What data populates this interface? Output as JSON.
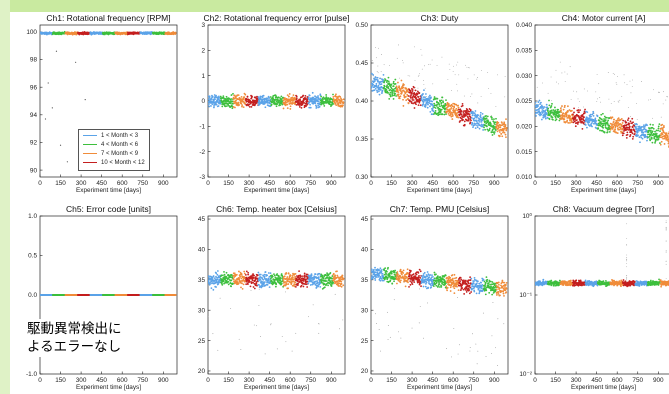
{
  "legend": [
    {
      "label": "1 < Month < 3",
      "color": "#5ba3e8"
    },
    {
      "label": "4 < Month < 6",
      "color": "#3dbf3d"
    },
    {
      "label": "7 < Month < 9",
      "color": "#f08c3a"
    },
    {
      "label": "10 < Month < 12",
      "color": "#c41f1f"
    }
  ],
  "annotation": {
    "line1": "駆動異常検出に",
    "line2": "よるエラーなし"
  },
  "chart_data": [
    {
      "type": "scatter",
      "title": "Ch1: Rotational frequency [RPM]",
      "xlabel": "Experiment time [days]",
      "xlim": [
        0,
        1000
      ],
      "xticks": [
        "0",
        "150",
        "300",
        "450",
        "600",
        "750",
        "900"
      ],
      "ylim": [
        89.5,
        100.5
      ],
      "yticks": [
        "90",
        "92",
        "94",
        "96",
        "98",
        "100"
      ],
      "yscale": "linear",
      "series": [
        {
          "level": 99.9,
          "spread": 0.12
        }
      ],
      "outliers": [
        [
          60,
          96.3
        ],
        [
          90,
          94.5
        ],
        [
          150,
          91.8
        ],
        [
          200,
          90.6
        ],
        [
          40,
          93.7
        ],
        [
          260,
          97.8
        ],
        [
          120,
          98.6
        ],
        [
          330,
          95.1
        ]
      ]
    },
    {
      "type": "scatter",
      "title": "Ch2: Rotational frequency error [pulse]",
      "xlabel": "Experiment time [days]",
      "xlim": [
        0,
        1000
      ],
      "xticks": [
        "0",
        "150",
        "300",
        "450",
        "600",
        "750",
        "900"
      ],
      "ylim": [
        -3,
        3
      ],
      "yticks": [
        "-3",
        "-2",
        "-1",
        "0",
        "1",
        "2",
        "3"
      ],
      "yscale": "linear",
      "series": [
        {
          "level": 0.0,
          "spread": 0.35
        }
      ]
    },
    {
      "type": "scatter",
      "title": "Ch3: Duty",
      "xlabel": "Experiment time [days]",
      "xlim": [
        0,
        1000
      ],
      "xticks": [
        "0",
        "150",
        "300",
        "450",
        "600",
        "750",
        "900"
      ],
      "ylim": [
        0.3,
        0.5
      ],
      "yticks": [
        "0.30",
        "0.35",
        "0.40",
        "0.45",
        "0.50"
      ],
      "yscale": "linear",
      "series": [
        {
          "start": 0.425,
          "end": 0.362,
          "spread": 0.018
        },
        {
          "x": [
            100,
            400
          ],
          "y": [
            0.42,
            0.37
          ]
        },
        {
          "x": [
            400,
            950
          ],
          "y": [
            0.39,
            0.37
          ]
        }
      ]
    },
    {
      "type": "scatter",
      "title": "Ch4: Motor current [A]",
      "xlabel": "Experiment time [days]",
      "xlim": [
        0,
        1000
      ],
      "xticks": [
        "0",
        "150",
        "300",
        "450",
        "600",
        "750",
        "900"
      ],
      "ylim": [
        0.01,
        0.04
      ],
      "yticks": [
        "0.010",
        "0.015",
        "0.020",
        "0.025",
        "0.030",
        "0.035",
        "0.040"
      ],
      "yscale": "linear",
      "series": [
        {
          "start": 0.0235,
          "end": 0.0178,
          "spread": 0.0025
        }
      ]
    },
    {
      "type": "scatter",
      "title": "Ch5: Error code [units]",
      "xlabel": "Experiment time [days]",
      "xlim": [
        0,
        1000
      ],
      "xticks": [
        "0",
        "150",
        "300",
        "450",
        "600",
        "750",
        "900"
      ],
      "ylim": [
        -1,
        1
      ],
      "yticks": [
        "-1.0",
        "-0.5",
        "0.0",
        "0.5",
        "1.0"
      ],
      "yscale": "linear",
      "series": [
        {
          "level": 0.0,
          "spread": 0.0
        }
      ]
    },
    {
      "type": "scatter",
      "title": "Ch6: Temp. heater box [Celsius]",
      "xlabel": "Experiment time [days]",
      "xlim": [
        0,
        1000
      ],
      "xticks": [
        "0",
        "150",
        "300",
        "450",
        "600",
        "750",
        "900"
      ],
      "ylim": [
        19.5,
        45.5
      ],
      "yticks": [
        "20",
        "25",
        "30",
        "35",
        "40",
        "45"
      ],
      "yscale": "linear",
      "series": [
        {
          "level": 35.0,
          "spread": 1.8
        }
      ]
    },
    {
      "type": "scatter",
      "title": "Ch7: Temp. PMU [Celsius]",
      "xlabel": "Experiment time [days]",
      "xlim": [
        0,
        1000
      ],
      "xticks": [
        "0",
        "150",
        "300",
        "450",
        "600",
        "750",
        "900"
      ],
      "ylim": [
        19.5,
        45.5
      ],
      "yticks": [
        "20",
        "25",
        "30",
        "35",
        "40",
        "45"
      ],
      "yscale": "linear",
      "series": [
        {
          "start": 36.0,
          "end": 33.5,
          "spread": 1.8
        }
      ]
    },
    {
      "type": "scatter",
      "title": "Ch8: Vacuum degree [Torr]",
      "xlabel": "Experiment time [days]",
      "xlim": [
        0,
        1000
      ],
      "xticks": [
        "0",
        "150",
        "300",
        "450",
        "600",
        "750",
        "900"
      ],
      "ylim": [
        -2,
        0
      ],
      "ytick_labels": [
        "10⁻²",
        "10⁻¹",
        "10⁰"
      ],
      "yscale": "log",
      "series": [
        {
          "level": -0.85,
          "spread": 0.05
        }
      ]
    }
  ]
}
